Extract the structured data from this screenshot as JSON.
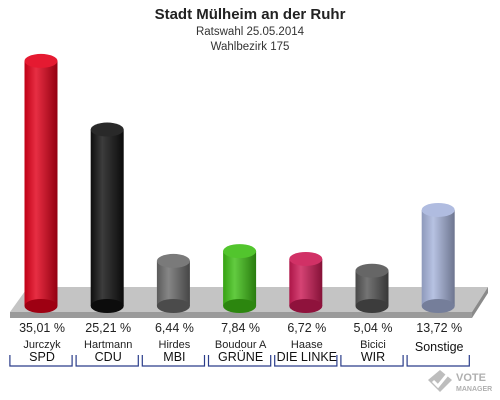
{
  "header": {
    "title": "Stadt Mülheim an der Ruhr",
    "subtitle": "Ratswahl 25.05.2014",
    "district": "Wahlbezirk 175"
  },
  "watermark": {
    "text_line1": "VOTE",
    "text_line2": "MANAGER"
  },
  "chart_data": {
    "type": "bar",
    "title": "Stadt Mülheim an der Ruhr",
    "subtitle": "Ratswahl 25.05.2014 · Wahlbezirk 175",
    "ylim": [
      0,
      38
    ],
    "value_unit": "%",
    "grid": false,
    "series": [
      {
        "values": [
          35.01,
          25.21,
          6.44,
          7.84,
          6.72,
          5.04,
          13.72
        ],
        "value_labels": [
          "35,01 %",
          "25,21 %",
          "6,44 %",
          "7,84 %",
          "6,72 %",
          "5,04 %",
          "13,72 %"
        ]
      }
    ],
    "categories": [
      {
        "candidate": "Jurczyk",
        "party": "SPD",
        "color": "#e2001a"
      },
      {
        "candidate": "Hartmann",
        "party": "CDU",
        "color": "#111111"
      },
      {
        "candidate": "Hirdes",
        "party": "MBI",
        "color": "#6b6b6b"
      },
      {
        "candidate": "Boudour A",
        "party": "GRÜNE",
        "color": "#3fbf16"
      },
      {
        "candidate": "Haase",
        "party": "DIE LINKE",
        "color": "#cc1a55"
      },
      {
        "candidate": "Bicici",
        "party": "WIR",
        "color": "#555555"
      },
      {
        "candidate": "",
        "party": "Sonstige",
        "color": "#a7b4dc"
      }
    ]
  }
}
